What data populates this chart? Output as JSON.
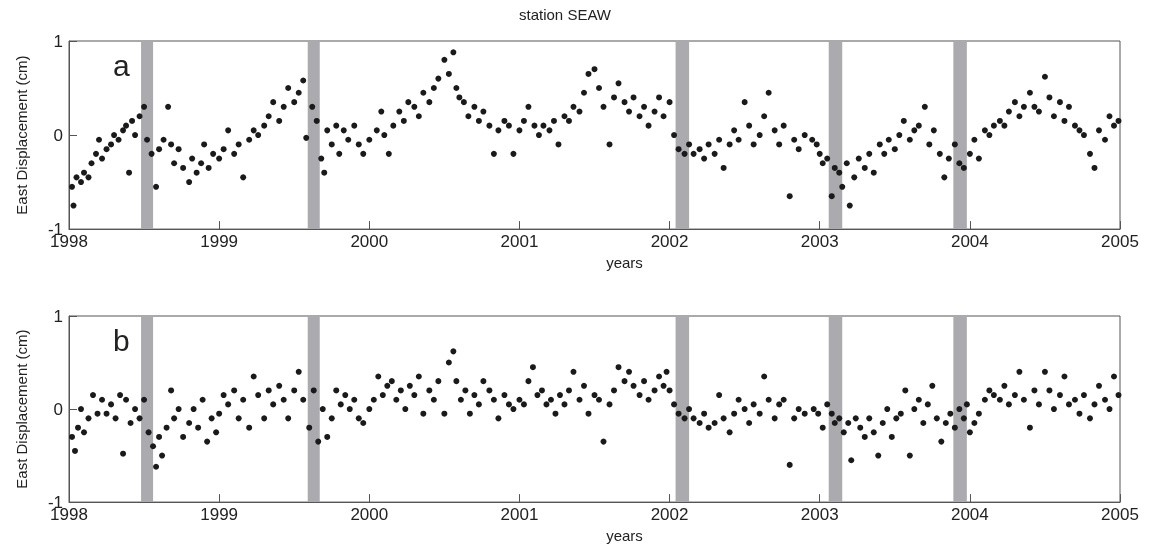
{
  "chart_data": [
    {
      "type": "scatter",
      "title": "station SEAW",
      "xlabel": "years",
      "ylabel": "East Displacement (cm)",
      "annotations": [
        "a"
      ],
      "xlim": [
        1998,
        2005
      ],
      "xticks": [
        1998,
        1999,
        2000,
        2001,
        2002,
        2003,
        2004,
        2005
      ],
      "ylim": [
        -1,
        1
      ],
      "yticks": [
        -1,
        0,
        1
      ],
      "grid": false,
      "marker": "circle",
      "bands": [
        {
          "axis": "x",
          "from": 1998.48,
          "to": 1998.56,
          "color": "#aaaaaf"
        },
        {
          "axis": "x",
          "from": 1999.59,
          "to": 1999.67,
          "color": "#aaaaaf"
        },
        {
          "axis": "x",
          "from": 2002.04,
          "to": 2002.13,
          "color": "#aaaaaf"
        },
        {
          "axis": "x",
          "from": 2003.06,
          "to": 2003.15,
          "color": "#aaaaaf"
        },
        {
          "axis": "x",
          "from": 2003.89,
          "to": 2003.98,
          "color": "#aaaaaf"
        }
      ],
      "series": [
        {
          "color": "#1a1a1a",
          "x": [
            1998.02,
            1998.03,
            1998.05,
            1998.08,
            1998.1,
            1998.13,
            1998.15,
            1998.18,
            1998.2,
            1998.22,
            1998.25,
            1998.28,
            1998.3,
            1998.33,
            1998.36,
            1998.38,
            1998.4,
            1998.42,
            1998.44,
            1998.47,
            1998.5,
            1998.52,
            1998.55,
            1998.58,
            1998.6,
            1998.63,
            1998.66,
            1998.68,
            1998.7,
            1998.73,
            1998.76,
            1998.8,
            1998.82,
            1998.85,
            1998.88,
            1998.9,
            1998.93,
            1998.96,
            1999.0,
            1999.03,
            1999.06,
            1999.1,
            1999.13,
            1999.16,
            1999.2,
            1999.23,
            1999.26,
            1999.3,
            1999.33,
            1999.36,
            1999.4,
            1999.43,
            1999.46,
            1999.5,
            1999.53,
            1999.56,
            1999.58,
            1999.62,
            1999.65,
            1999.68,
            1999.7,
            1999.72,
            1999.75,
            1999.78,
            1999.8,
            1999.83,
            1999.86,
            1999.9,
            1999.93,
            1999.96,
            2000.0,
            2000.05,
            2000.08,
            2000.1,
            2000.13,
            2000.16,
            2000.2,
            2000.23,
            2000.26,
            2000.3,
            2000.33,
            2000.36,
            2000.4,
            2000.43,
            2000.46,
            2000.5,
            2000.53,
            2000.56,
            2000.58,
            2000.6,
            2000.63,
            2000.66,
            2000.7,
            2000.73,
            2000.76,
            2000.8,
            2000.83,
            2000.86,
            2000.9,
            2000.93,
            2000.96,
            2001.0,
            2001.03,
            2001.06,
            2001.1,
            2001.13,
            2001.16,
            2001.2,
            2001.23,
            2001.26,
            2001.3,
            2001.33,
            2001.36,
            2001.4,
            2001.43,
            2001.46,
            2001.5,
            2001.53,
            2001.56,
            2001.6,
            2001.63,
            2001.66,
            2001.7,
            2001.73,
            2001.76,
            2001.8,
            2001.83,
            2001.86,
            2001.9,
            2001.93,
            2001.96,
            2002.0,
            2002.03,
            2002.06,
            2002.1,
            2002.13,
            2002.16,
            2002.2,
            2002.23,
            2002.26,
            2002.3,
            2002.33,
            2002.36,
            2002.4,
            2002.43,
            2002.46,
            2002.5,
            2002.53,
            2002.56,
            2002.6,
            2002.63,
            2002.66,
            2002.7,
            2002.73,
            2002.76,
            2002.8,
            2002.83,
            2002.86,
            2002.9,
            2002.95,
            2002.98,
            2003.0,
            2003.02,
            2003.05,
            2003.08,
            2003.1,
            2003.13,
            2003.15,
            2003.18,
            2003.2,
            2003.23,
            2003.26,
            2003.3,
            2003.33,
            2003.36,
            2003.4,
            2003.43,
            2003.46,
            2003.5,
            2003.53,
            2003.56,
            2003.6,
            2003.63,
            2003.66,
            2003.7,
            2003.73,
            2003.76,
            2003.8,
            2003.83,
            2003.86,
            2003.9,
            2003.93,
            2003.96,
            2004.0,
            2004.03,
            2004.06,
            2004.1,
            2004.13,
            2004.16,
            2004.2,
            2004.23,
            2004.26,
            2004.3,
            2004.33,
            2004.36,
            2004.4,
            2004.43,
            2004.46,
            2004.5,
            2004.53,
            2004.56,
            2004.6,
            2004.63,
            2004.66,
            2004.7,
            2004.73,
            2004.76,
            2004.8,
            2004.83,
            2004.86,
            2004.9,
            2004.93,
            2004.96,
            2004.99
          ],
          "values": [
            -0.55,
            -0.75,
            -0.45,
            -0.5,
            -0.4,
            -0.45,
            -0.3,
            -0.2,
            -0.05,
            -0.25,
            -0.15,
            -0.1,
            0.0,
            -0.05,
            0.05,
            0.1,
            -0.4,
            0.15,
            0.0,
            0.2,
            0.3,
            -0.05,
            -0.2,
            -0.55,
            -0.15,
            -0.05,
            0.3,
            -0.1,
            -0.3,
            -0.15,
            -0.35,
            -0.5,
            -0.25,
            -0.4,
            -0.3,
            -0.1,
            -0.35,
            -0.2,
            -0.25,
            -0.15,
            0.05,
            -0.2,
            -0.1,
            -0.45,
            -0.05,
            0.05,
            0.0,
            0.1,
            0.2,
            0.35,
            0.15,
            0.3,
            0.5,
            0.35,
            0.45,
            0.58,
            -0.03,
            0.3,
            0.15,
            -0.25,
            -0.4,
            0.05,
            -0.1,
            0.1,
            -0.2,
            0.05,
            -0.05,
            0.1,
            -0.1,
            -0.2,
            -0.05,
            0.05,
            0.25,
            0.0,
            -0.2,
            0.1,
            0.25,
            0.15,
            0.35,
            0.3,
            0.2,
            0.45,
            0.35,
            0.5,
            0.6,
            0.8,
            0.65,
            0.88,
            0.5,
            0.4,
            0.35,
            0.2,
            0.3,
            0.15,
            0.25,
            0.1,
            -0.2,
            0.05,
            0.15,
            0.1,
            -0.2,
            0.05,
            0.15,
            0.3,
            0.1,
            0.0,
            0.1,
            0.05,
            0.15,
            -0.1,
            0.2,
            0.15,
            0.3,
            0.25,
            0.45,
            0.65,
            0.7,
            0.5,
            0.3,
            -0.1,
            0.4,
            0.55,
            0.35,
            0.25,
            0.4,
            0.2,
            0.3,
            0.1,
            0.25,
            0.4,
            0.2,
            0.35,
            0.0,
            -0.15,
            -0.2,
            -0.1,
            -0.2,
            -0.15,
            -0.25,
            -0.1,
            -0.2,
            -0.05,
            -0.35,
            -0.1,
            0.05,
            -0.05,
            0.35,
            0.1,
            -0.1,
            0.0,
            0.2,
            0.45,
            0.05,
            -0.1,
            0.1,
            -0.65,
            -0.05,
            -0.15,
            0.0,
            -0.05,
            -0.1,
            -0.2,
            -0.3,
            -0.25,
            -0.65,
            -0.35,
            -0.4,
            -0.55,
            -0.3,
            -0.75,
            -0.45,
            -0.25,
            -0.35,
            -0.2,
            -0.4,
            -0.1,
            -0.2,
            -0.05,
            -0.15,
            0.0,
            0.15,
            -0.05,
            0.05,
            0.1,
            0.3,
            -0.1,
            0.05,
            -0.2,
            -0.45,
            -0.25,
            -0.1,
            -0.3,
            -0.35,
            -0.2,
            -0.05,
            -0.25,
            0.05,
            0.0,
            0.1,
            0.15,
            0.1,
            0.25,
            0.35,
            0.2,
            0.3,
            0.45,
            0.3,
            0.25,
            0.62,
            0.4,
            0.2,
            0.35,
            0.15,
            0.3,
            0.1,
            0.05,
            0.0,
            -0.2,
            -0.35,
            0.05,
            -0.05,
            0.2,
            0.1,
            0.15
          ]
        }
      ]
    },
    {
      "type": "scatter",
      "xlabel": "years",
      "ylabel": "East Displacement (cm)",
      "annotations": [
        "b"
      ],
      "xlim": [
        1998,
        2005
      ],
      "xticks": [
        1998,
        1999,
        2000,
        2001,
        2002,
        2003,
        2004,
        2005
      ],
      "ylim": [
        -1,
        1
      ],
      "yticks": [
        -1,
        0,
        1
      ],
      "grid": false,
      "marker": "circle",
      "bands": [
        {
          "axis": "x",
          "from": 1998.48,
          "to": 1998.56,
          "color": "#aaaaaf"
        },
        {
          "axis": "x",
          "from": 1999.59,
          "to": 1999.67,
          "color": "#aaaaaf"
        },
        {
          "axis": "x",
          "from": 2002.04,
          "to": 2002.13,
          "color": "#aaaaaf"
        },
        {
          "axis": "x",
          "from": 2003.06,
          "to": 2003.15,
          "color": "#aaaaaf"
        },
        {
          "axis": "x",
          "from": 2003.89,
          "to": 2003.98,
          "color": "#aaaaaf"
        }
      ],
      "series": [
        {
          "color": "#1a1a1a",
          "x": [
            1998.02,
            1998.04,
            1998.06,
            1998.08,
            1998.1,
            1998.13,
            1998.16,
            1998.19,
            1998.22,
            1998.25,
            1998.28,
            1998.31,
            1998.34,
            1998.36,
            1998.38,
            1998.41,
            1998.44,
            1998.47,
            1998.5,
            1998.53,
            1998.56,
            1998.58,
            1998.6,
            1998.62,
            1998.65,
            1998.68,
            1998.7,
            1998.73,
            1998.76,
            1998.8,
            1998.83,
            1998.86,
            1998.89,
            1998.92,
            1998.95,
            1998.98,
            1999.0,
            1999.03,
            1999.06,
            1999.1,
            1999.13,
            1999.16,
            1999.2,
            1999.23,
            1999.26,
            1999.3,
            1999.33,
            1999.36,
            1999.4,
            1999.43,
            1999.46,
            1999.5,
            1999.53,
            1999.56,
            1999.6,
            1999.63,
            1999.66,
            1999.69,
            1999.72,
            1999.75,
            1999.78,
            1999.81,
            1999.84,
            1999.87,
            1999.9,
            1999.93,
            1999.96,
            2000.0,
            2000.03,
            2000.06,
            2000.09,
            2000.12,
            2000.15,
            2000.18,
            2000.21,
            2000.24,
            2000.27,
            2000.3,
            2000.33,
            2000.36,
            2000.4,
            2000.43,
            2000.46,
            2000.5,
            2000.53,
            2000.56,
            2000.58,
            2000.61,
            2000.64,
            2000.67,
            2000.7,
            2000.73,
            2000.76,
            2000.8,
            2000.83,
            2000.86,
            2000.9,
            2000.93,
            2000.96,
            2001.0,
            2001.03,
            2001.06,
            2001.09,
            2001.12,
            2001.15,
            2001.18,
            2001.21,
            2001.24,
            2001.27,
            2001.3,
            2001.33,
            2001.36,
            2001.4,
            2001.43,
            2001.46,
            2001.5,
            2001.53,
            2001.56,
            2001.6,
            2001.63,
            2001.66,
            2001.7,
            2001.73,
            2001.76,
            2001.8,
            2001.83,
            2001.86,
            2001.9,
            2001.93,
            2001.96,
            2001.98,
            2002.0,
            2002.03,
            2002.06,
            2002.1,
            2002.13,
            2002.16,
            2002.2,
            2002.23,
            2002.26,
            2002.3,
            2002.33,
            2002.36,
            2002.4,
            2002.43,
            2002.46,
            2002.5,
            2002.53,
            2002.56,
            2002.6,
            2002.63,
            2002.66,
            2002.7,
            2002.73,
            2002.76,
            2002.8,
            2002.83,
            2002.86,
            2002.9,
            2002.96,
            2002.99,
            2003.02,
            2003.05,
            2003.08,
            2003.1,
            2003.13,
            2003.16,
            2003.19,
            2003.21,
            2003.24,
            2003.27,
            2003.3,
            2003.33,
            2003.36,
            2003.39,
            2003.42,
            2003.45,
            2003.48,
            2003.51,
            2003.54,
            2003.57,
            2003.6,
            2003.63,
            2003.66,
            2003.69,
            2003.72,
            2003.75,
            2003.78,
            2003.81,
            2003.84,
            2003.87,
            2003.9,
            2003.93,
            2003.96,
            2003.98,
            2004.0,
            2004.03,
            2004.06,
            2004.1,
            2004.13,
            2004.16,
            2004.2,
            2004.23,
            2004.26,
            2004.3,
            2004.33,
            2004.36,
            2004.4,
            2004.43,
            2004.46,
            2004.5,
            2004.53,
            2004.56,
            2004.6,
            2004.63,
            2004.66,
            2004.7,
            2004.73,
            2004.76,
            2004.8,
            2004.83,
            2004.86,
            2004.9,
            2004.93,
            2004.96,
            2004.99
          ],
          "values": [
            -0.3,
            -0.45,
            -0.2,
            0.0,
            -0.25,
            -0.1,
            0.15,
            -0.05,
            0.1,
            -0.05,
            0.05,
            -0.1,
            0.15,
            -0.48,
            0.1,
            -0.15,
            0.0,
            -0.1,
            0.1,
            -0.25,
            -0.4,
            -0.62,
            -0.3,
            -0.5,
            -0.2,
            0.2,
            -0.1,
            0.0,
            -0.3,
            -0.15,
            0.0,
            -0.2,
            0.1,
            -0.35,
            -0.1,
            -0.25,
            -0.05,
            0.15,
            0.05,
            0.2,
            -0.1,
            0.1,
            -0.2,
            0.35,
            0.15,
            -0.1,
            0.2,
            0.05,
            0.25,
            0.1,
            -0.1,
            0.2,
            0.4,
            0.1,
            -0.2,
            0.2,
            -0.35,
            0.0,
            -0.3,
            -0.1,
            0.2,
            0.05,
            0.15,
            0.0,
            0.1,
            -0.1,
            -0.15,
            0.0,
            0.1,
            0.35,
            0.15,
            0.25,
            0.3,
            0.1,
            0.2,
            0.0,
            0.25,
            0.15,
            0.35,
            -0.05,
            0.2,
            0.1,
            0.3,
            -0.05,
            0.5,
            0.62,
            0.3,
            0.1,
            0.2,
            -0.05,
            0.15,
            0.05,
            0.3,
            0.2,
            0.1,
            -0.1,
            0.15,
            0.05,
            0.0,
            0.1,
            0.05,
            0.3,
            0.45,
            0.15,
            0.2,
            0.05,
            0.1,
            -0.05,
            0.15,
            0.05,
            0.2,
            0.4,
            0.1,
            0.25,
            -0.05,
            0.15,
            0.1,
            -0.35,
            0.05,
            0.2,
            0.45,
            0.3,
            0.4,
            0.25,
            0.15,
            0.3,
            0.1,
            0.2,
            0.35,
            0.25,
            0.4,
            0.2,
            0.05,
            -0.05,
            -0.1,
            0.0,
            -0.1,
            -0.15,
            -0.05,
            -0.2,
            -0.15,
            0.15,
            -0.1,
            -0.25,
            -0.05,
            0.1,
            0.0,
            -0.15,
            0.05,
            -0.05,
            0.35,
            0.1,
            -0.1,
            0.05,
            0.1,
            -0.6,
            -0.1,
            0.0,
            -0.05,
            0.0,
            -0.05,
            -0.2,
            0.05,
            -0.05,
            -0.15,
            -0.1,
            -0.25,
            -0.15,
            -0.55,
            -0.1,
            -0.2,
            -0.3,
            -0.1,
            -0.25,
            -0.5,
            -0.15,
            0.0,
            -0.3,
            -0.1,
            -0.05,
            0.2,
            -0.5,
            0.0,
            0.1,
            -0.15,
            0.05,
            0.25,
            -0.1,
            -0.35,
            -0.15,
            -0.05,
            -0.2,
            0.0,
            -0.1,
            0.05,
            -0.25,
            -0.15,
            -0.05,
            0.1,
            0.2,
            0.15,
            0.1,
            0.25,
            0.05,
            0.15,
            0.4,
            0.1,
            -0.2,
            0.2,
            0.05,
            0.4,
            0.2,
            0.0,
            0.15,
            0.35,
            0.05,
            0.1,
            -0.05,
            0.15,
            -0.1,
            0.05,
            0.25,
            0.1,
            0.0,
            0.35,
            0.15
          ]
        }
      ]
    }
  ]
}
